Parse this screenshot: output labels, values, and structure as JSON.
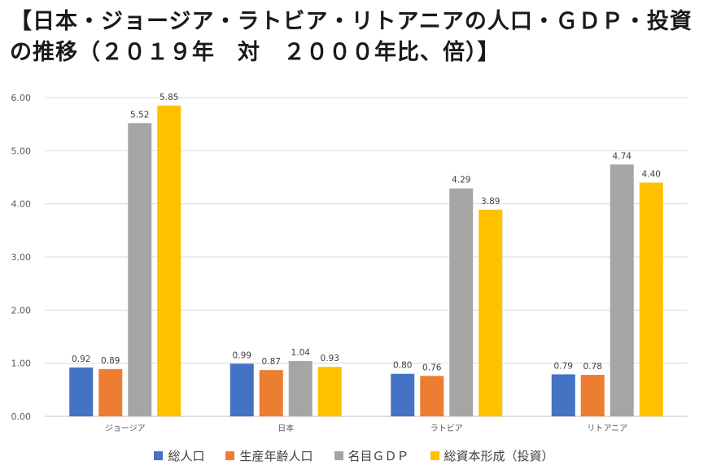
{
  "chart_data": {
    "type": "bar",
    "title": "【日本・ジョージア・ラトビア・リトアニアの人口・ＧＤＰ・投資の推移（２０１９年　対　２０００年比、倍）】",
    "categories": [
      "ジョージア",
      "日本",
      "ラトビア",
      "リトアニア"
    ],
    "series": [
      {
        "name": "総人口",
        "color": "#4472C4",
        "values": [
          0.92,
          0.99,
          0.8,
          0.79
        ]
      },
      {
        "name": "生産年齢人口",
        "color": "#ED7D31",
        "values": [
          0.89,
          0.87,
          0.76,
          0.78
        ]
      },
      {
        "name": "名目ＧＤＰ",
        "color": "#A5A5A5",
        "values": [
          5.52,
          1.04,
          4.29,
          4.74
        ]
      },
      {
        "name": "総資本形成（投資）",
        "color": "#FFC000",
        "values": [
          5.85,
          0.93,
          3.89,
          4.4
        ]
      }
    ],
    "ylim": [
      0,
      6
    ],
    "yticks": [
      "0.00",
      "1.00",
      "2.00",
      "3.00",
      "4.00",
      "5.00",
      "6.00"
    ],
    "grid": true,
    "legend_position": "bottom",
    "xlabel": "",
    "ylabel": ""
  }
}
